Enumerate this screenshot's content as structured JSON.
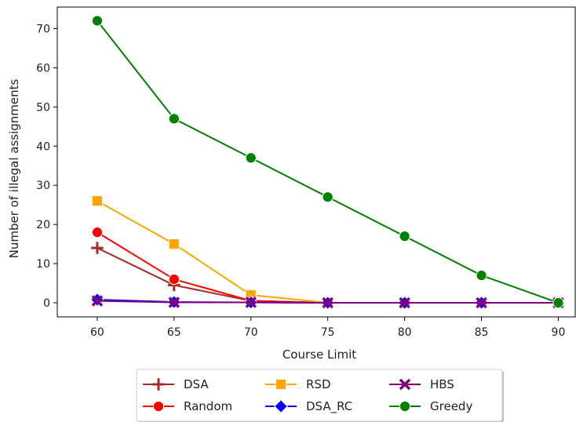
{
  "chart_data": {
    "type": "line",
    "xlabel": "Course Limit",
    "ylabel": "Number of illegal assignments",
    "x": [
      60,
      65,
      70,
      75,
      80,
      85,
      90
    ],
    "xticks": [
      "60",
      "65",
      "70",
      "75",
      "80",
      "85",
      "90"
    ],
    "yticks": [
      "0",
      "10",
      "20",
      "30",
      "40",
      "50",
      "60",
      "70"
    ],
    "xlim": [
      57.4,
      91.1
    ],
    "ylim": [
      -3.6,
      75.5
    ],
    "grid": false,
    "legend_position": "bottom, outside plot",
    "series": [
      {
        "name": "DSA",
        "color": "#a52a2a",
        "marker": "plus",
        "values": [
          14,
          4.5,
          0.5,
          0,
          0,
          0,
          0
        ]
      },
      {
        "name": "Random",
        "color": "#ff0000",
        "marker": "circle",
        "values": [
          18,
          6,
          0.5,
          0,
          0,
          0,
          0
        ]
      },
      {
        "name": "RSD",
        "color": "#ffa500",
        "marker": "square",
        "values": [
          26,
          15,
          2,
          0,
          0,
          0,
          0
        ]
      },
      {
        "name": "DSA_RC",
        "color": "#0000ff",
        "marker": "diamond",
        "values": [
          0.8,
          0.2,
          0.1,
          0,
          0,
          0,
          0
        ]
      },
      {
        "name": "HBS",
        "color": "#800080",
        "marker": "x",
        "values": [
          0.5,
          0.1,
          0.1,
          0,
          0,
          0,
          0
        ]
      },
      {
        "name": "Greedy",
        "color": "#008000",
        "marker": "circle",
        "values": [
          72,
          47,
          37,
          27,
          17,
          7,
          0
        ]
      }
    ]
  }
}
